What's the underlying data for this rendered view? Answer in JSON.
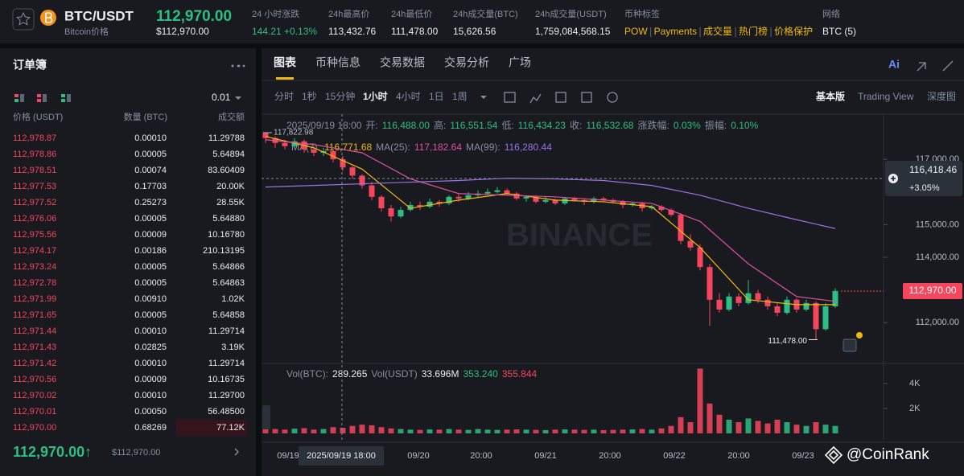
{
  "header": {
    "pair": "BTC/USDT",
    "sub": "Bitcoin价格",
    "price": "112,970.00",
    "price_usd": "$112,970.00",
    "stats": [
      {
        "label": "24 小时涨跌",
        "value": "144.21 +0.13%"
      },
      {
        "label": "24h最高价",
        "value": "113,432.76"
      },
      {
        "label": "24h最低价",
        "value": "111,478.00"
      },
      {
        "label": "24h成交量(BTC)",
        "value": "15,626.56"
      },
      {
        "label": "24h成交量(USDT)",
        "value": "1,759,084,568.15"
      }
    ],
    "tags_label": "币种标签",
    "tags": [
      "POW",
      "Payments",
      "成交量",
      "热门榜",
      "价格保护"
    ],
    "network_label": "网络",
    "network": "BTC (5)"
  },
  "orderbook": {
    "title": "订单簿",
    "precision": "0.01",
    "columns": [
      "价格 (USDT)",
      "数量 (BTC)",
      "成交额"
    ],
    "asks": [
      [
        "112,978.87",
        "0.00010",
        "11.29788"
      ],
      [
        "112,978.86",
        "0.00005",
        "5.64894"
      ],
      [
        "112,978.51",
        "0.00074",
        "83.60409"
      ],
      [
        "112,977.53",
        "0.17703",
        "20.00K"
      ],
      [
        "112,977.52",
        "0.25273",
        "28.55K"
      ],
      [
        "112,976.06",
        "0.00005",
        "5.64880"
      ],
      [
        "112,975.56",
        "0.00009",
        "10.16780"
      ],
      [
        "112,974.17",
        "0.00186",
        "210.13195"
      ],
      [
        "112,973.24",
        "0.00005",
        "5.64866"
      ],
      [
        "112,972.78",
        "0.00005",
        "5.64863"
      ],
      [
        "112,971.99",
        "0.00910",
        "1.02K"
      ],
      [
        "112,971.65",
        "0.00005",
        "5.64858"
      ],
      [
        "112,971.44",
        "0.00010",
        "11.29714"
      ],
      [
        "112,971.43",
        "0.02825",
        "3.19K"
      ],
      [
        "112,971.42",
        "0.00010",
        "11.29714"
      ],
      [
        "112,970.56",
        "0.00009",
        "10.16735"
      ],
      [
        "112,970.02",
        "0.00010",
        "11.29700"
      ],
      [
        "112,970.01",
        "0.00050",
        "56.48500"
      ],
      [
        "112,970.00",
        "0.68269",
        "77.12K"
      ]
    ],
    "last_price": "112,970.00↑",
    "last_price_usd": "$112,970.00"
  },
  "chart_panel": {
    "tabs": [
      "图表",
      "币种信息",
      "交易数据",
      "交易分析",
      "广场"
    ],
    "ai": "Ai",
    "intervals": [
      "分时",
      "1秒",
      "15分钟",
      "1小时",
      "4小时",
      "1日",
      "1周"
    ],
    "views": [
      "基本版",
      "Trading View",
      "深度图"
    ],
    "info_time": "2025/09/19 18:00",
    "info": [
      {
        "label": "开:",
        "value": "116,488.00"
      },
      {
        "label": "高:",
        "value": "116,551.54"
      },
      {
        "label": "低:",
        "value": "116,434.23"
      },
      {
        "label": "收:",
        "value": "116,532.68"
      },
      {
        "label": "涨跌幅:",
        "value": "0.03%"
      },
      {
        "label": "振幅:",
        "value": "0.10%"
      }
    ],
    "ma_info": [
      {
        "label": "MA(7):",
        "value": "116,771.68"
      },
      {
        "label": "MA(25):",
        "value": "117,182.64"
      },
      {
        "label": "MA(99):",
        "value": "116,280.44"
      }
    ],
    "vol_info": [
      {
        "label": "Vol(BTC):",
        "value": "289.265"
      },
      {
        "label": "Vol(USDT)",
        "value": "33.696M"
      }
    ],
    "vol_ma": [
      "353.240",
      "355.844"
    ],
    "watermark": "BINANCE",
    "kline": {
      "ylim": [
        110800,
        118430
      ],
      "yticks": [
        {
          "value": 117000,
          "label": "117,000.00"
        },
        {
          "value": 115000,
          "label": "115,000.00"
        },
        {
          "value": 114000,
          "label": "114,000.00"
        },
        {
          "value": 112000,
          "label": "112,000.00"
        }
      ],
      "colors": {
        "up": "#2ebd85",
        "down": "#f6465d"
      },
      "candles": [
        [
          117800,
          117823,
          117500,
          117650
        ],
        [
          117650,
          117700,
          117350,
          117500
        ],
        [
          117500,
          117600,
          117300,
          117400
        ],
        [
          117400,
          117650,
          117350,
          117550
        ],
        [
          117550,
          117600,
          117200,
          117300
        ],
        [
          117300,
          117400,
          117100,
          117200
        ],
        [
          117200,
          117350,
          117100,
          117250
        ],
        [
          117250,
          117300,
          116900,
          117000
        ],
        [
          117000,
          117100,
          116650,
          116750
        ],
        [
          116750,
          116800,
          116400,
          116500
        ],
        [
          116500,
          116550,
          116100,
          116200
        ],
        [
          116200,
          116300,
          115750,
          115850
        ],
        [
          115850,
          115900,
          115400,
          115500
        ],
        [
          115500,
          115600,
          115100,
          115250
        ],
        [
          115250,
          115550,
          115200,
          115450
        ],
        [
          115450,
          115700,
          115400,
          115600
        ],
        [
          115600,
          115700,
          115450,
          115550
        ],
        [
          115550,
          115800,
          115500,
          115700
        ],
        [
          115700,
          115750,
          115550,
          115650
        ],
        [
          115650,
          115900,
          115600,
          115850
        ],
        [
          115850,
          115950,
          115700,
          115800
        ],
        [
          115800,
          116000,
          115750,
          115900
        ],
        [
          115900,
          116050,
          115850,
          115950
        ],
        [
          115950,
          116100,
          115900,
          116000
        ],
        [
          116000,
          116150,
          115950,
          116050
        ],
        [
          116050,
          116100,
          115900,
          115950
        ],
        [
          115950,
          116000,
          115750,
          115800
        ],
        [
          115800,
          115900,
          115700,
          115850
        ],
        [
          115850,
          115900,
          115650,
          115700
        ],
        [
          115700,
          115850,
          115650,
          115750
        ],
        [
          115750,
          115800,
          115600,
          115650
        ],
        [
          115650,
          115850,
          115600,
          115800
        ],
        [
          115800,
          115850,
          115700,
          115750
        ],
        [
          115750,
          115800,
          115600,
          115700
        ],
        [
          115700,
          115850,
          115650,
          115800
        ],
        [
          115800,
          115850,
          115700,
          115750
        ],
        [
          115750,
          115800,
          115650,
          115700
        ],
        [
          115700,
          115750,
          115500,
          115600
        ],
        [
          115600,
          115700,
          115550,
          115650
        ],
        [
          115650,
          115700,
          115400,
          115500
        ],
        [
          115500,
          115600,
          115450,
          115550
        ],
        [
          115550,
          115600,
          115400,
          115450
        ],
        [
          115450,
          115500,
          115250,
          115300
        ],
        [
          115300,
          115350,
          114400,
          114500
        ],
        [
          114500,
          114700,
          114200,
          114300
        ],
        [
          114300,
          114400,
          113600,
          113700
        ],
        [
          113700,
          113800,
          111900,
          112700
        ],
        [
          112700,
          112900,
          112300,
          112400
        ],
        [
          112400,
          112900,
          112350,
          112800
        ],
        [
          112800,
          112900,
          112500,
          112600
        ],
        [
          112600,
          113300,
          112550,
          112900
        ],
        [
          112900,
          113000,
          112600,
          112700
        ],
        [
          112700,
          112800,
          112400,
          112500
        ],
        [
          112500,
          112600,
          112200,
          112300
        ],
        [
          112300,
          112800,
          112250,
          112700
        ],
        [
          112700,
          112750,
          112300,
          112400
        ],
        [
          112400,
          112700,
          112350,
          112600
        ],
        [
          112600,
          112650,
          111478,
          111800
        ],
        [
          111800,
          112600,
          111750,
          112500
        ],
        [
          112500,
          113050,
          112450,
          112970
        ]
      ],
      "ma_x": [
        0,
        5,
        10,
        15,
        20,
        25,
        30,
        35,
        40,
        45,
        50,
        55,
        59
      ],
      "ma": [
        {
          "color": "#f0b90b",
          "values": [
            117700,
            117350,
            116700,
            115500,
            115750,
            115950,
            115750,
            115700,
            115550,
            114300,
            112700,
            112550,
            112550
          ]
        },
        {
          "color": "#e0519d",
          "values": [
            117600,
            117450,
            117200,
            116400,
            115950,
            115900,
            115850,
            115750,
            115650,
            115100,
            113800,
            112800,
            112650
          ]
        },
        {
          "color": "#9b73e8",
          "values": [
            116150,
            116200,
            116250,
            116300,
            116350,
            116420,
            116400,
            116350,
            116200,
            115900,
            115500,
            115150,
            114880
          ]
        }
      ],
      "high_label": "117,822.98",
      "low_label": "111,478.00",
      "last_label": "112,970.00",
      "crosshair_price": "116,418.46",
      "crosshair_change": "+3.05%",
      "crosshair_time": "2025/09/19 18:00",
      "xlabels": [
        "09/19",
        "09/20",
        "20:00",
        "09/21",
        "20:00",
        "09/22",
        "20:00",
        "09/23"
      ],
      "volumes": [
        400,
        350,
        300,
        380,
        420,
        300,
        350,
        500,
        450,
        600,
        700,
        650,
        500,
        400,
        350,
        300,
        280,
        320,
        300,
        350,
        300,
        280,
        350,
        300,
        280,
        300,
        320,
        300,
        280,
        260,
        300,
        320,
        300,
        280,
        300,
        260,
        280,
        300,
        320,
        350,
        300,
        400,
        600,
        1300,
        900,
        5200,
        2400,
        1500,
        1100,
        900,
        1200,
        1000,
        800,
        1100,
        900,
        700,
        600,
        900,
        700,
        600
      ],
      "vlim": [
        0,
        5420
      ],
      "vticks": [
        {
          "value": 4000,
          "label": "4K"
        },
        {
          "value": 2000,
          "label": "2K"
        }
      ]
    }
  },
  "watermark": "@CoinRank"
}
